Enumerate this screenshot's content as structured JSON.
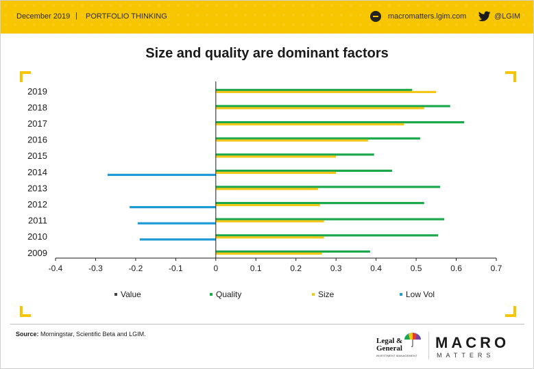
{
  "header": {
    "date": "December 2019",
    "separator": "|",
    "section": "PORTFOLIO THINKING",
    "website": "macromatters.lgim.com",
    "twitter_handle": "@LGIM",
    "www_icon": "www-globe-icon",
    "bird_icon": "twitter-bird-icon",
    "background_color": "#f8c600"
  },
  "chart_data": {
    "type": "bar",
    "orientation": "horizontal",
    "title": "Size and quality are dominant factors",
    "categories": [
      "2019",
      "2018",
      "2017",
      "2016",
      "2015",
      "2014",
      "2013",
      "2012",
      "2011",
      "2010",
      "2009"
    ],
    "series": [
      {
        "name": "Value",
        "color": "#404040",
        "values": [
          0,
          0,
          0,
          0,
          0,
          0,
          0,
          0,
          0,
          0,
          0
        ]
      },
      {
        "name": "Quality",
        "color": "#1aa84a",
        "values": [
          0.49,
          0.585,
          0.62,
          0.51,
          0.395,
          0.44,
          0.56,
          0.52,
          0.57,
          0.555,
          0.385
        ]
      },
      {
        "name": "Size",
        "color": "#f2c71a",
        "values": [
          0.55,
          0.52,
          0.47,
          0.38,
          0.3,
          0.3,
          0.255,
          0.26,
          0.27,
          0.27,
          0.265
        ]
      },
      {
        "name": "Low Vol",
        "color": "#1e9bd4",
        "values": [
          0,
          0,
          0,
          0,
          0,
          -0.27,
          0,
          -0.215,
          -0.195,
          -0.19,
          0
        ]
      }
    ],
    "xlim": [
      -0.4,
      0.7
    ],
    "xticks": [
      "-0.4",
      "-0.3",
      "-0.2",
      "-0.1",
      "0",
      "0.1",
      "0.2",
      "0.3",
      "0.4",
      "0.5",
      "0.6",
      "0.7"
    ],
    "legend_position": "bottom",
    "grid": false
  },
  "footer": {
    "source_label": "Source:",
    "source_text": " Morningstar, Scientific Beta and LGIM.",
    "lg_name_line1": "Legal &",
    "lg_name_line2": "General",
    "lg_sub": "INVESTMENT MANAGEMENT",
    "lg_logo_icon": "umbrella-icon",
    "macro_word": "MACRO",
    "macro_sub": "MATTERS"
  }
}
